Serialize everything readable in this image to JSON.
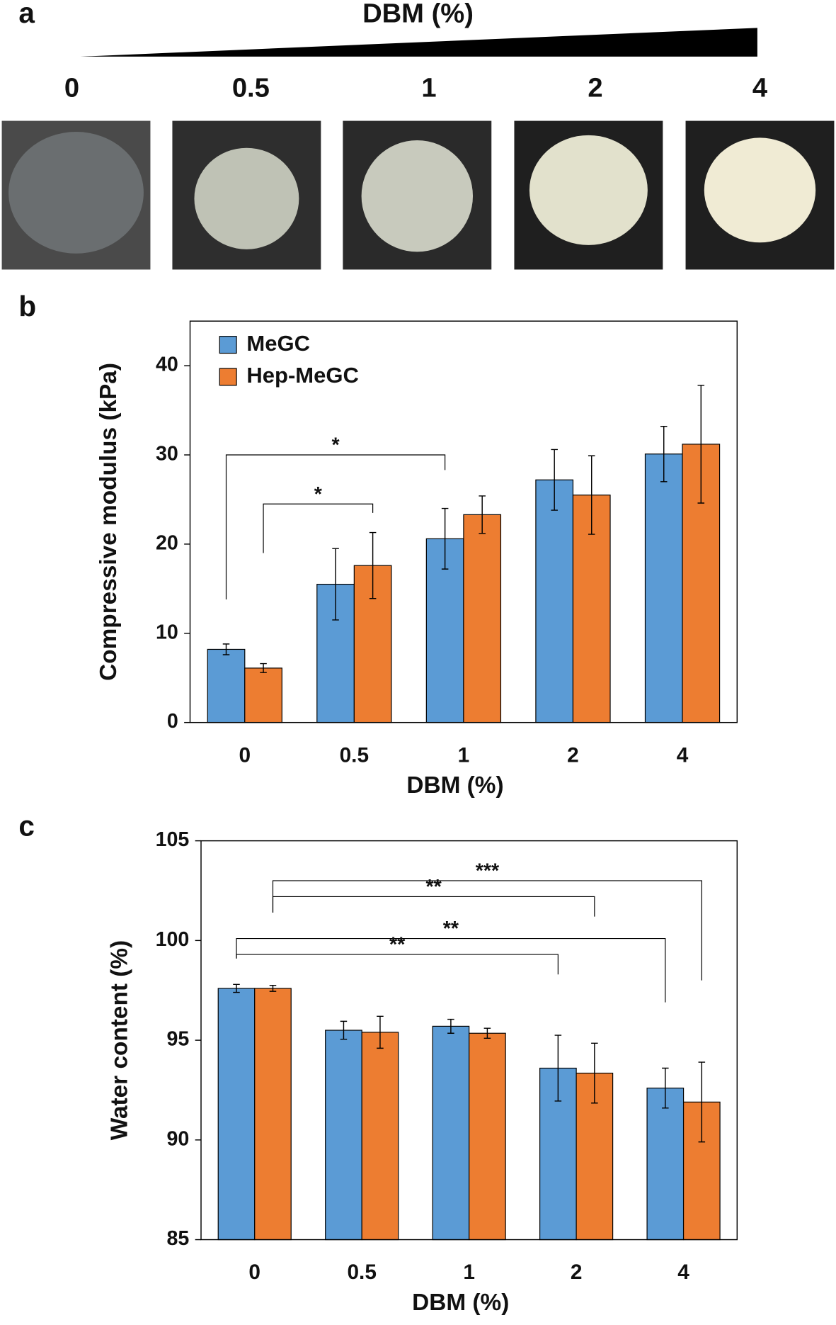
{
  "panel_a": {
    "label": "a",
    "title": "DBM (%)",
    "labels": [
      "0",
      "0.5",
      "1",
      "2",
      "4"
    ]
  },
  "chart_data": [
    {
      "type": "bar",
      "panel_label": "b",
      "xlabel": "DBM (%)",
      "ylabel": "Compressive modulus (kPa)",
      "categories": [
        "0",
        "0.5",
        "1",
        "2",
        "4"
      ],
      "series": [
        {
          "name": "MeGC",
          "color": "#5b9bd5",
          "values": [
            8.2,
            15.5,
            20.6,
            27.2,
            30.1
          ],
          "errors": [
            0.6,
            4.0,
            3.4,
            3.4,
            3.1
          ]
        },
        {
          "name": "Hep-MeGC",
          "color": "#ed7d31",
          "values": [
            6.1,
            17.6,
            23.3,
            25.5,
            31.2
          ],
          "errors": [
            0.5,
            3.7,
            2.1,
            4.4,
            6.6
          ]
        }
      ],
      "ylim": [
        0,
        45
      ],
      "yticks": [
        0,
        10,
        20,
        30,
        40
      ],
      "legend": "top-left",
      "annotations": [
        "*",
        "*"
      ]
    },
    {
      "type": "bar",
      "panel_label": "c",
      "xlabel": "DBM (%)",
      "ylabel": "Water content (%)",
      "categories": [
        "0",
        "0.5",
        "1",
        "2",
        "4"
      ],
      "series": [
        {
          "name": "MeGC",
          "color": "#5b9bd5",
          "values": [
            97.6,
            95.5,
            95.7,
            93.6,
            92.6
          ],
          "errors": [
            0.2,
            0.45,
            0.35,
            1.65,
            1.0
          ]
        },
        {
          "name": "Hep-MeGC",
          "color": "#ed7d31",
          "values": [
            97.6,
            95.4,
            95.35,
            93.35,
            91.9
          ],
          "errors": [
            0.15,
            0.8,
            0.25,
            1.5,
            2.0
          ]
        }
      ],
      "ylim": [
        85,
        105
      ],
      "yticks": [
        85,
        90,
        95,
        100,
        105
      ],
      "annotations": [
        "***",
        "**",
        "**",
        "**"
      ]
    }
  ]
}
